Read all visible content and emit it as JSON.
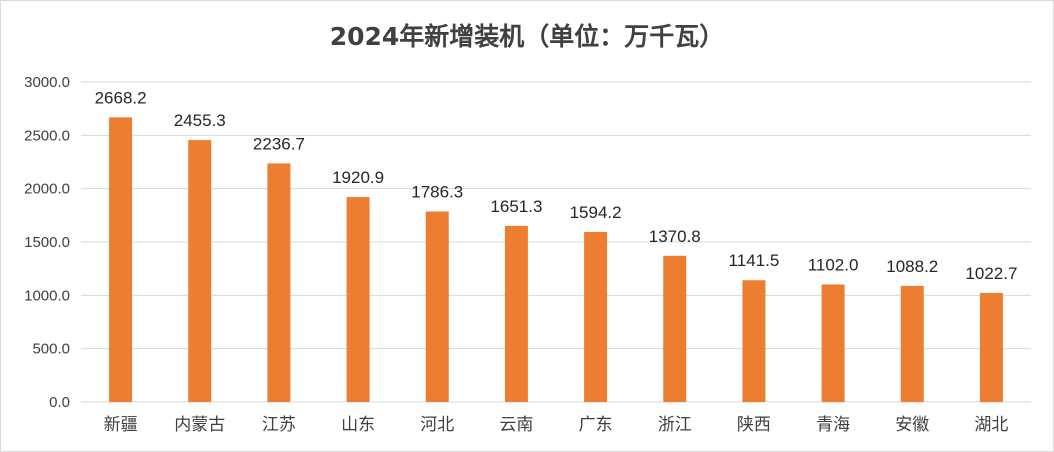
{
  "chart_data": {
    "type": "bar",
    "title": "2024年新增装机（单位：万千瓦）",
    "categories": [
      "新疆",
      "内蒙古",
      "江苏",
      "山东",
      "河北",
      "云南",
      "广东",
      "浙江",
      "陕西",
      "青海",
      "安徽",
      "湖北"
    ],
    "values": [
      2668.2,
      2455.3,
      2236.7,
      1920.9,
      1786.3,
      1651.3,
      1594.2,
      1370.8,
      1141.5,
      1102.0,
      1088.2,
      1022.7
    ],
    "value_labels": [
      "2668.2",
      "2455.3",
      "2236.7",
      "1920.9",
      "1786.3",
      "1651.3",
      "1594.2",
      "1370.8",
      "1141.5",
      "1102.0",
      "1088.2",
      "1022.7"
    ],
    "y_ticks": [
      "0.0",
      "500.0",
      "1000.0",
      "1500.0",
      "2000.0",
      "2500.0",
      "3000.0"
    ],
    "ylim": [
      0,
      3000
    ],
    "grid": true,
    "legend": "none",
    "bar_color": "#ed7d31"
  }
}
